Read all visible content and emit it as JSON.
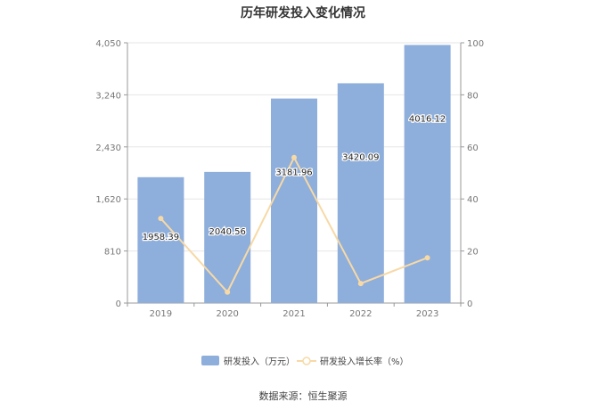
{
  "chart_data": {
    "type": "bar",
    "title": "历年研发投入变化情况",
    "categories": [
      "2019",
      "2020",
      "2021",
      "2022",
      "2023"
    ],
    "series": [
      {
        "name": "研发投入（万元）",
        "type": "bar",
        "axis": "left",
        "values": [
          1958.39,
          2040.56,
          3181.96,
          3420.09,
          4016.12
        ],
        "labels": [
          "1958.39",
          "2040.56",
          "3181.96",
          "3420.09",
          "4016.12"
        ],
        "color": "#8eaedb"
      },
      {
        "name": "研发投入增长率（%）",
        "type": "line",
        "axis": "right",
        "values": [
          32.5,
          4.2,
          55.9,
          7.5,
          17.4
        ],
        "color": "#f7d9a6"
      }
    ],
    "y_left": {
      "ticks": [
        "0",
        "810",
        "1,620",
        "2,430",
        "3,240",
        "4,050"
      ],
      "lim": [
        0,
        4050
      ]
    },
    "y_right": {
      "ticks": [
        "0",
        "20",
        "40",
        "60",
        "80",
        "100"
      ],
      "lim": [
        0,
        100
      ]
    },
    "grid": true,
    "legend_position": "bottom"
  },
  "source": "数据来源：恒生聚源"
}
